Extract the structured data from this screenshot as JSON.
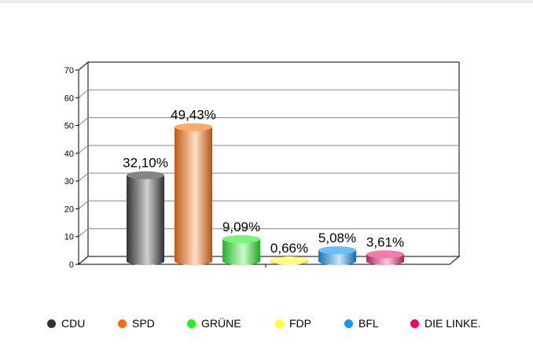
{
  "chart_data": {
    "type": "bar",
    "categories": [
      "CDU",
      "SPD",
      "GRÜNE",
      "FDP",
      "BFL",
      "DIE LINKE."
    ],
    "values": [
      32.1,
      49.43,
      9.09,
      0.66,
      5.08,
      3.61
    ],
    "data_labels": [
      "32,10%",
      "49,43%",
      "9,09%",
      "0,66%",
      "5,08%",
      "3,61%"
    ],
    "colors": [
      "#444444",
      "#ff7a1a",
      "#33ee33",
      "#ffff44",
      "#1e9bf0",
      "#e8337a"
    ],
    "ylim": [
      0,
      70
    ],
    "yticks": [
      "0",
      "10",
      "20",
      "30",
      "40",
      "50",
      "60",
      "70"
    ],
    "grid": true,
    "legend_position": "bottom",
    "title": "",
    "xlabel": "",
    "ylabel": ""
  },
  "legend": {
    "items": [
      {
        "label": "CDU",
        "color": "#333333"
      },
      {
        "label": "SPD",
        "color": "#ff6a10"
      },
      {
        "label": "GRÜNE",
        "color": "#22ee22"
      },
      {
        "label": "FDP",
        "color": "#ffff33"
      },
      {
        "label": "BFL",
        "color": "#1596f0"
      },
      {
        "label": "DIE LINKE.",
        "color": "#ee0066"
      }
    ]
  }
}
